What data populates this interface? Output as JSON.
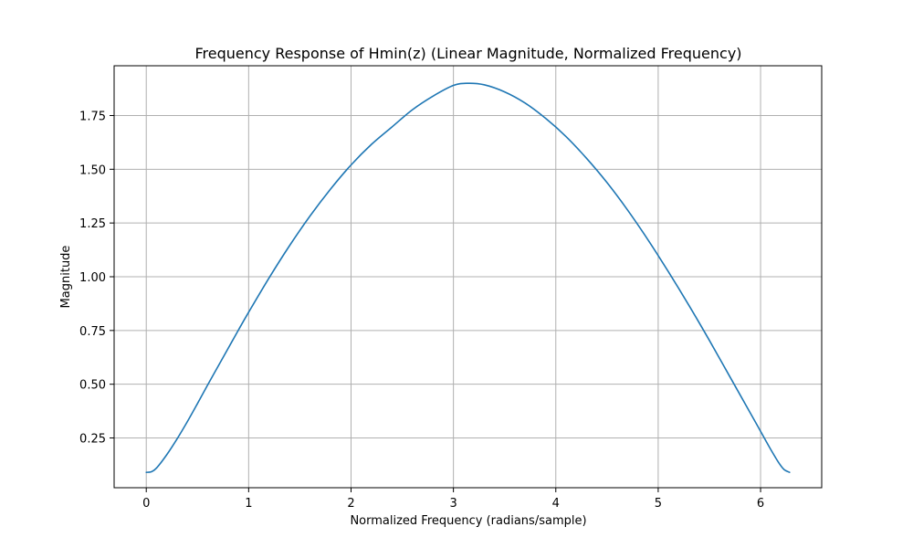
{
  "chart_data": {
    "type": "line",
    "title": "Frequency Response of Hmin(z) (Linear Magnitude, Normalized Frequency)",
    "xlabel": "Normalized Frequency (radians/sample)",
    "ylabel": "Magnitude",
    "xlim": [
      -0.314,
      6.597
    ],
    "ylim": [
      0.0185,
      1.9815
    ],
    "xticks": [
      0,
      1,
      2,
      3,
      4,
      5,
      6
    ],
    "xtick_labels": [
      "0",
      "1",
      "2",
      "3",
      "4",
      "5",
      "6"
    ],
    "yticks": [
      0.25,
      0.5,
      0.75,
      1.0,
      1.25,
      1.5,
      1.75
    ],
    "ytick_labels": [
      "0.25",
      "0.50",
      "0.75",
      "1.00",
      "1.25",
      "1.50",
      "1.75"
    ],
    "grid": true,
    "series": [
      {
        "color": "#1f77b4",
        "x": [
          0.0,
          0.05,
          0.1,
          0.2,
          0.3,
          0.4,
          0.5,
          0.6,
          0.7,
          0.8,
          0.9,
          1.0,
          1.2,
          1.4,
          1.6,
          1.8,
          2.0,
          2.2,
          2.4,
          2.6,
          2.8,
          3.0,
          3.1416,
          3.3,
          3.5,
          3.7,
          3.9,
          4.1,
          4.3,
          4.5,
          4.7,
          4.9,
          5.1,
          5.3,
          5.5,
          5.7,
          5.9,
          6.0,
          6.1,
          6.18,
          6.23,
          6.2832
        ],
        "y": [
          0.09,
          0.093,
          0.11,
          0.172,
          0.245,
          0.325,
          0.41,
          0.497,
          0.582,
          0.667,
          0.752,
          0.835,
          0.995,
          1.145,
          1.283,
          1.408,
          1.52,
          1.616,
          1.697,
          1.777,
          1.84,
          1.89,
          1.9,
          1.893,
          1.86,
          1.808,
          1.737,
          1.652,
          1.551,
          1.438,
          1.311,
          1.172,
          1.023,
          0.867,
          0.704,
          0.535,
          0.366,
          0.281,
          0.196,
          0.133,
          0.103,
          0.09
        ]
      }
    ]
  }
}
